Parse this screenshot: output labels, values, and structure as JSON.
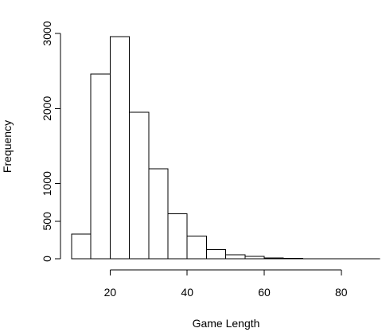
{
  "chart_data": {
    "type": "bar",
    "subtype": "histogram",
    "xlabel": "Game Length",
    "ylabel": "Frequency",
    "bins": [
      {
        "start": 10,
        "end": 15,
        "count": 330
      },
      {
        "start": 15,
        "end": 20,
        "count": 2460
      },
      {
        "start": 20,
        "end": 25,
        "count": 2960
      },
      {
        "start": 25,
        "end": 30,
        "count": 1950
      },
      {
        "start": 30,
        "end": 35,
        "count": 1200
      },
      {
        "start": 35,
        "end": 40,
        "count": 600
      },
      {
        "start": 40,
        "end": 45,
        "count": 300
      },
      {
        "start": 45,
        "end": 50,
        "count": 120
      },
      {
        "start": 50,
        "end": 55,
        "count": 55
      },
      {
        "start": 55,
        "end": 60,
        "count": 30
      },
      {
        "start": 60,
        "end": 65,
        "count": 12
      },
      {
        "start": 65,
        "end": 70,
        "count": 4
      },
      {
        "start": 70,
        "end": 75,
        "count": 2
      },
      {
        "start": 75,
        "end": 80,
        "count": 1
      },
      {
        "start": 80,
        "end": 85,
        "count": 1
      },
      {
        "start": 85,
        "end": 90,
        "count": 1
      }
    ],
    "xlim": [
      10,
      90
    ],
    "ylim": [
      0,
      3000
    ],
    "x_ticks": [
      20,
      40,
      60,
      80
    ],
    "y_ticks": [
      0,
      500,
      1000,
      2000,
      3000
    ],
    "grid": false,
    "legend": "none",
    "colors": {
      "bar_fill": "#ffffff",
      "bar_stroke": "#000000"
    }
  }
}
